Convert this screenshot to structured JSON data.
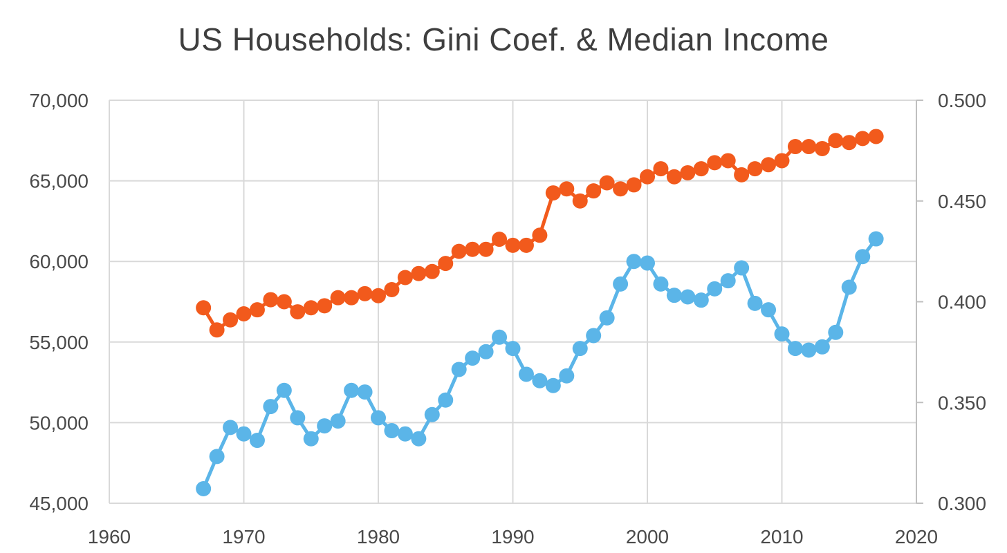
{
  "chart_data": {
    "type": "line",
    "title": "US Households: Gini Coef. & Median Income",
    "xlabel": "",
    "ylabel": "",
    "xlim": [
      1960,
      2020
    ],
    "xticks": [
      1960,
      1970,
      1980,
      1990,
      2000,
      2010,
      2020
    ],
    "xtick_labels": [
      "1960",
      "1970",
      "1980",
      "1990",
      "2000",
      "2010",
      "2020"
    ],
    "ylim_left": [
      45000,
      70000
    ],
    "yticks_left": [
      45000,
      50000,
      55000,
      60000,
      65000,
      70000
    ],
    "ytick_labels_left": [
      "45,000",
      "50,000",
      "55,000",
      "60,000",
      "65,000",
      "70,000"
    ],
    "ylim_right": [
      0.3,
      0.5
    ],
    "yticks_right": [
      0.3,
      0.35,
      0.4,
      0.45,
      0.5
    ],
    "ytick_labels_right": [
      "0.300",
      "0.350",
      "0.400",
      "0.450",
      "0.500"
    ],
    "grid": true,
    "legend": "none",
    "series": [
      {
        "name": "Median Income",
        "axis": "left",
        "color": "#5bb5e8",
        "x": [
          1967,
          1968,
          1969,
          1970,
          1971,
          1972,
          1973,
          1974,
          1975,
          1976,
          1977,
          1978,
          1979,
          1980,
          1981,
          1982,
          1983,
          1984,
          1985,
          1986,
          1987,
          1988,
          1989,
          1990,
          1991,
          1992,
          1993,
          1994,
          1995,
          1996,
          1997,
          1998,
          1999,
          2000,
          2001,
          2002,
          2003,
          2004,
          2005,
          2006,
          2007,
          2008,
          2009,
          2010,
          2011,
          2012,
          2013,
          2014,
          2015,
          2016,
          2017
        ],
        "values": [
          45900,
          47900,
          49700,
          49300,
          48900,
          51000,
          52000,
          50300,
          49000,
          49800,
          50100,
          52000,
          51900,
          50300,
          49500,
          49300,
          49000,
          50500,
          51400,
          53300,
          54000,
          54400,
          55300,
          54600,
          53000,
          52600,
          52300,
          52900,
          54600,
          55400,
          56500,
          58600,
          60000,
          59900,
          58600,
          57900,
          57800,
          57600,
          58300,
          58800,
          59600,
          57400,
          57000,
          55500,
          54600,
          54500,
          54700,
          55600,
          58400,
          60300,
          61400
        ]
      },
      {
        "name": "Gini Coefficient",
        "axis": "right",
        "color": "#f25a1c",
        "x": [
          1967,
          1968,
          1969,
          1970,
          1971,
          1972,
          1973,
          1974,
          1975,
          1976,
          1977,
          1978,
          1979,
          1980,
          1981,
          1982,
          1983,
          1984,
          1985,
          1986,
          1987,
          1988,
          1989,
          1990,
          1991,
          1992,
          1993,
          1994,
          1995,
          1996,
          1997,
          1998,
          1999,
          2000,
          2001,
          2002,
          2003,
          2004,
          2005,
          2006,
          2007,
          2008,
          2009,
          2010,
          2011,
          2012,
          2013,
          2014,
          2015,
          2016,
          2017
        ],
        "values": [
          0.397,
          0.386,
          0.391,
          0.394,
          0.396,
          0.401,
          0.4,
          0.395,
          0.397,
          0.398,
          0.402,
          0.402,
          0.404,
          0.403,
          0.406,
          0.412,
          0.414,
          0.415,
          0.419,
          0.425,
          0.426,
          0.426,
          0.431,
          0.428,
          0.428,
          0.433,
          0.454,
          0.456,
          0.45,
          0.455,
          0.459,
          0.456,
          0.458,
          0.462,
          0.466,
          0.462,
          0.464,
          0.466,
          0.469,
          0.47,
          0.463,
          0.466,
          0.468,
          0.47,
          0.477,
          0.477,
          0.476,
          0.48,
          0.479,
          0.481,
          0.482
        ]
      }
    ]
  }
}
